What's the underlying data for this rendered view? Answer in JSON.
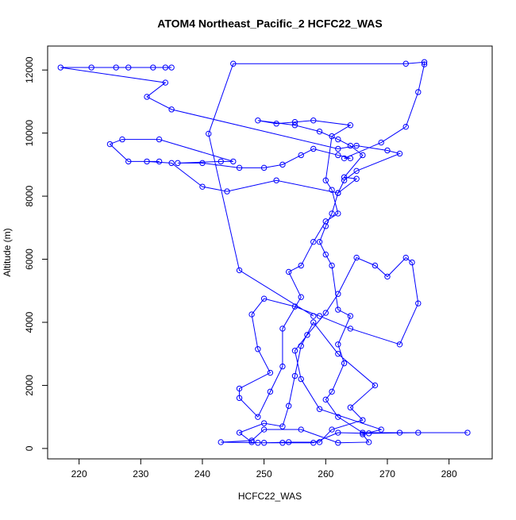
{
  "chart_data": {
    "type": "line",
    "title": "ATOM4 Northeast_Pacific_2 HCFC22_WAS",
    "x_label": "HCFC22_WAS",
    "y_label": "Altitude (m)",
    "color": "#0000ff",
    "markers": "open-circle",
    "xlim": [
      214.9,
      287
    ],
    "ylim": [
      -330,
      12760
    ],
    "xticks": [
      220,
      230,
      240,
      250,
      260,
      270,
      280
    ],
    "yticks": [
      0,
      2000,
      4000,
      6000,
      8000,
      10000,
      12000
    ],
    "x": [
      235,
      234,
      232,
      228,
      226,
      222,
      217,
      234,
      231,
      235,
      262,
      265,
      270,
      272,
      265,
      263,
      262,
      261,
      260,
      259,
      260,
      261,
      262,
      264,
      262,
      263,
      261,
      260,
      262,
      266,
      272,
      283,
      275,
      267,
      262,
      258,
      253,
      249,
      248,
      246,
      250,
      253,
      254,
      255,
      256,
      258,
      262,
      268,
      264,
      266,
      261,
      259,
      254,
      250,
      243,
      248,
      250,
      256,
      262,
      267,
      266,
      269,
      259,
      256,
      255,
      257,
      260,
      262,
      265,
      268,
      270,
      273,
      274,
      275,
      272,
      264,
      259,
      255,
      250,
      248,
      249,
      251,
      246,
      246,
      249,
      251,
      253,
      253,
      256,
      254,
      256,
      258,
      260,
      262,
      261,
      260,
      261,
      264,
      258,
      255,
      252,
      249,
      255,
      259,
      262,
      264,
      266,
      263,
      265,
      262,
      252,
      244,
      240,
      235,
      231,
      233,
      228,
      225,
      227,
      233,
      245,
      243,
      236,
      240,
      246,
      250,
      253,
      256,
      258,
      262,
      264,
      263,
      269,
      273,
      275,
      276,
      276,
      273,
      245,
      241,
      246,
      258
    ],
    "values": [
      12080,
      12080,
      12080,
      12080,
      12080,
      12080,
      12080,
      11600,
      11150,
      10750,
      9500,
      9600,
      9450,
      9350,
      8800,
      8500,
      8100,
      7450,
      7050,
      6550,
      6150,
      5800,
      4400,
      4200,
      3300,
      2700,
      1800,
      1550,
      1000,
      500,
      500,
      500,
      500,
      480,
      500,
      180,
      180,
      180,
      200,
      500,
      800,
      700,
      1350,
      2300,
      3250,
      4000,
      3000,
      2000,
      1300,
      900,
      600,
      200,
      200,
      180,
      200,
      250,
      600,
      600,
      180,
      200,
      450,
      600,
      1250,
      2200,
      3100,
      3600,
      4300,
      4900,
      6050,
      5800,
      5450,
      6050,
      5900,
      4600,
      3300,
      3800,
      4200,
      4500,
      4750,
      4250,
      3150,
      2400,
      1900,
      1600,
      1000,
      1800,
      2600,
      3800,
      4800,
      5600,
      5800,
      6550,
      7200,
      7450,
      8200,
      8500,
      9900,
      10250,
      10400,
      10350,
      10300,
      10400,
      10250,
      10050,
      9800,
      9600,
      9300,
      8600,
      8550,
      8100,
      8500,
      8150,
      8300,
      9050,
      9100,
      9100,
      9100,
      9650,
      9800,
      9800,
      9100,
      9100,
      9050,
      9050,
      8900,
      8900,
      9000,
      9300,
      9500,
      9300,
      9200,
      9200,
      9700,
      10200,
      11300,
      12180,
      12250,
      12200,
      12200,
      9980,
      5650,
      4200
    ]
  }
}
